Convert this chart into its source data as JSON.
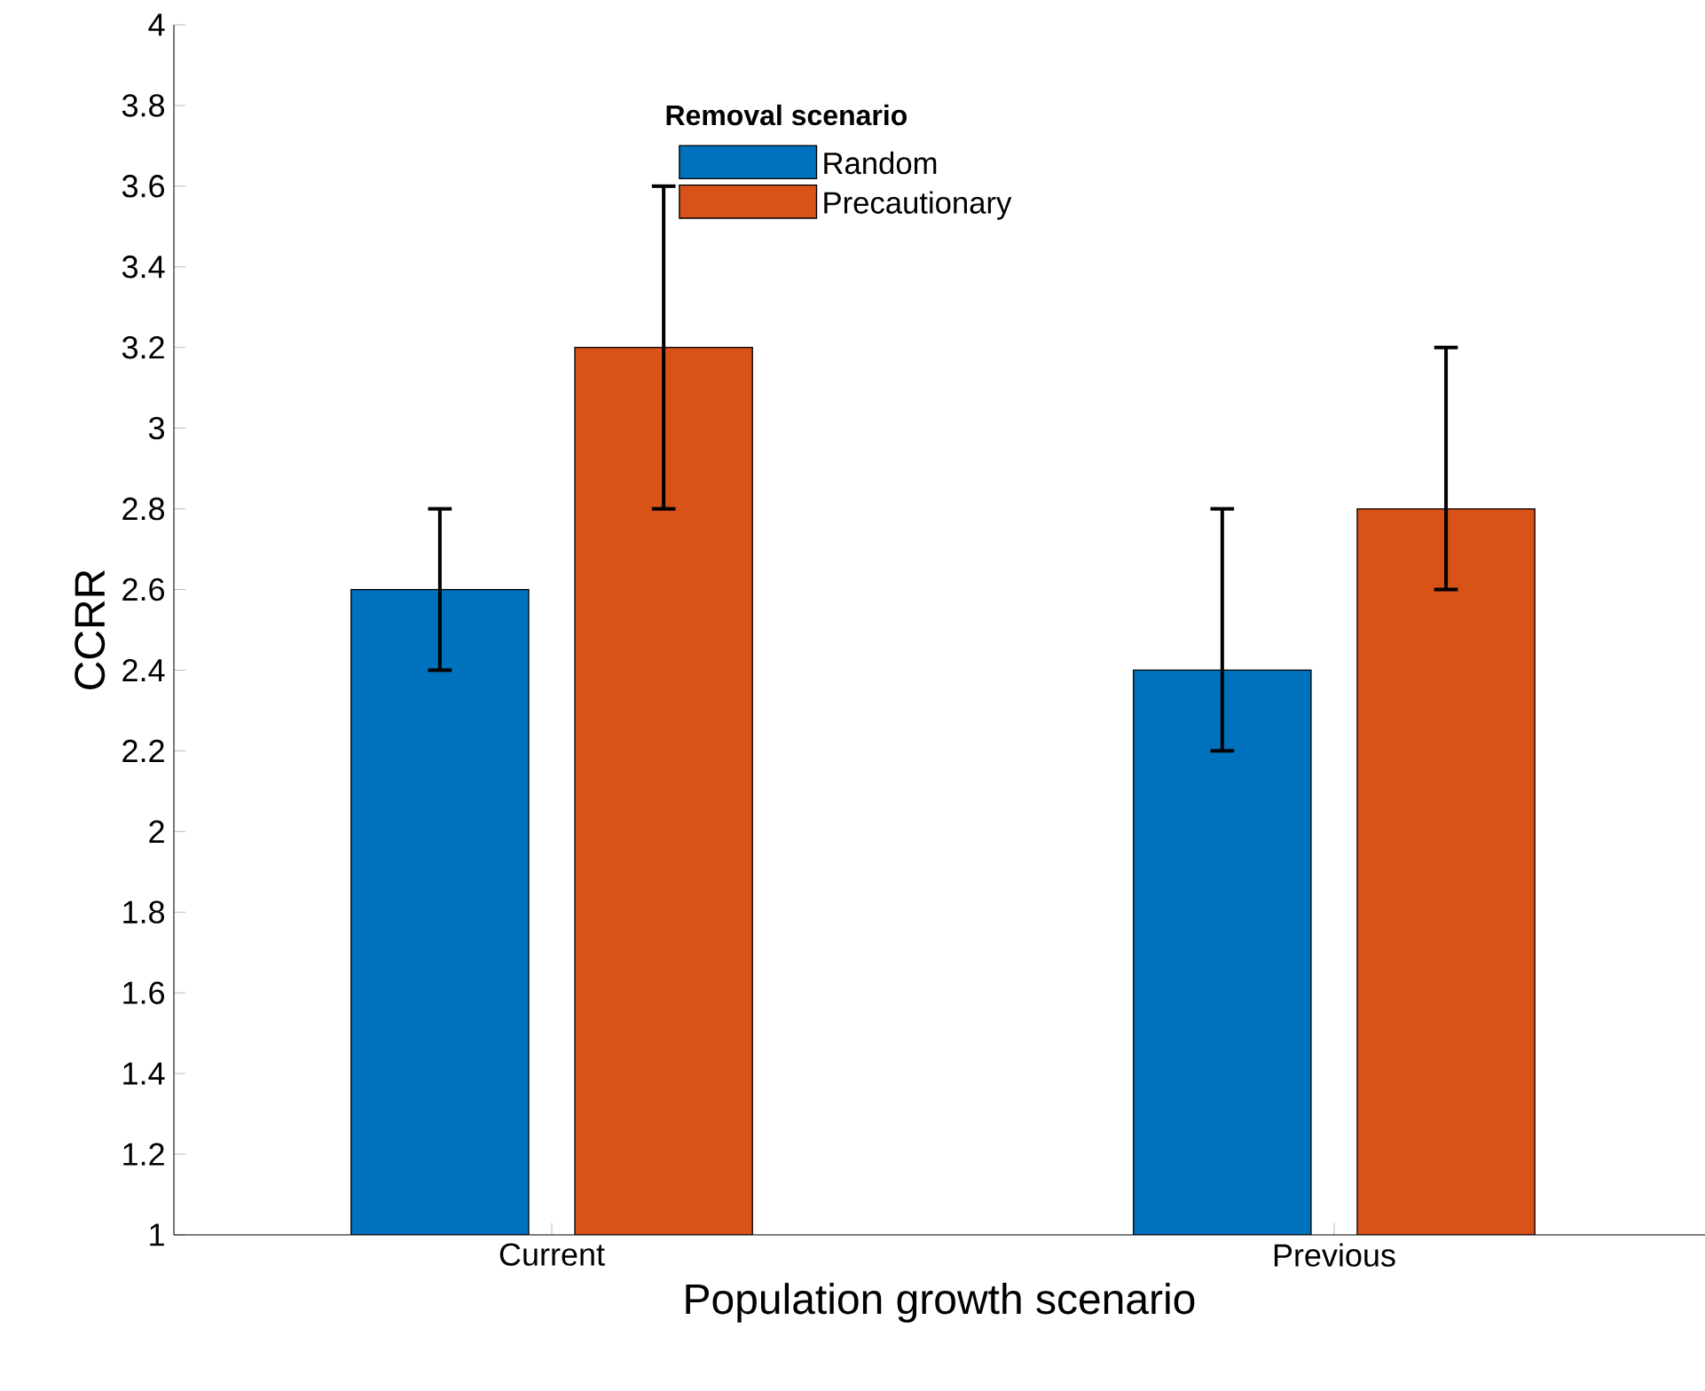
{
  "chart_data": {
    "type": "bar",
    "xlabel": "Population growth scenario",
    "ylabel": "CCRR",
    "legend_title": "Removal scenario",
    "categories": [
      "Current",
      "Previous"
    ],
    "series": [
      {
        "name": "Random",
        "color": "#0072bd",
        "values": [
          2.6,
          2.4
        ],
        "errors": [
          [
            2.4,
            2.8
          ],
          [
            2.2,
            2.8
          ]
        ]
      },
      {
        "name": "Precautionary",
        "color": "#d95319",
        "values": [
          3.2,
          2.8
        ],
        "errors": [
          [
            2.8,
            3.6
          ],
          [
            2.6,
            3.2
          ]
        ]
      }
    ],
    "ylim": [
      1,
      4
    ],
    "yticks": [
      1,
      1.2,
      1.4,
      1.6,
      1.8,
      2,
      2.2,
      2.4,
      2.6,
      2.8,
      3,
      3.2,
      3.4,
      3.6,
      3.8,
      4
    ],
    "grid": false,
    "legend": "top"
  }
}
